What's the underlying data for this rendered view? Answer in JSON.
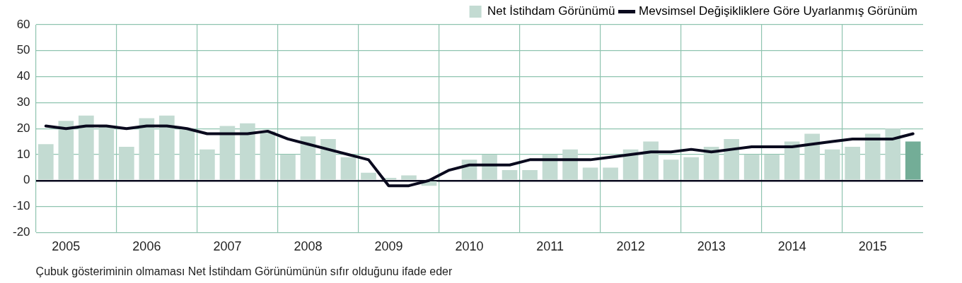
{
  "chart_data": {
    "type": "bar",
    "categories": [
      null,
      "2005",
      null,
      null,
      null,
      "2006",
      null,
      null,
      null,
      "2007",
      null,
      null,
      null,
      "2008",
      null,
      null,
      null,
      "2009",
      null,
      null,
      null,
      "2010",
      null,
      null,
      null,
      "2011",
      null,
      null,
      null,
      "2012",
      null,
      null,
      null,
      "2013",
      null,
      null,
      null,
      "2014",
      null,
      null,
      null,
      "2015",
      null,
      null
    ],
    "series": [
      {
        "name": "Net İstihdam Görünümü",
        "color": "#c3dbd2",
        "colors": [
          "#c3dbd2",
          "#c3dbd2",
          "#c3dbd2",
          "#c3dbd2",
          "#c3dbd2",
          "#c3dbd2",
          "#c3dbd2",
          "#c3dbd2",
          "#c3dbd2",
          "#c3dbd2",
          "#c3dbd2",
          "#c3dbd2",
          "#c3dbd2",
          "#c3dbd2",
          "#c3dbd2",
          "#c3dbd2",
          "#c3dbd2",
          "#c3dbd2",
          "#c3dbd2",
          "#c3dbd2",
          "#c3dbd2",
          "#c3dbd2",
          "#c3dbd2",
          "#c3dbd2",
          "#c3dbd2",
          "#c3dbd2",
          "#c3dbd2",
          "#c3dbd2",
          "#c3dbd2",
          "#c3dbd2",
          "#c3dbd2",
          "#c3dbd2",
          "#c3dbd2",
          "#c3dbd2",
          "#c3dbd2",
          "#c3dbd2",
          "#c3dbd2",
          "#c3dbd2",
          "#c3dbd2",
          "#c3dbd2",
          "#c3dbd2",
          "#c3dbd2",
          "#c3dbd2",
          "#73ad97"
        ],
        "values": [
          14,
          23,
          25,
          21,
          13,
          24,
          25,
          20,
          12,
          21,
          22,
          19,
          10,
          17,
          16,
          9,
          3,
          1,
          2,
          -2,
          0,
          8,
          10,
          4,
          4,
          10,
          12,
          5,
          5,
          12,
          15,
          8,
          9,
          13,
          16,
          10,
          10,
          15,
          18,
          12,
          13,
          18,
          20,
          15
        ]
      },
      {
        "name": "Mevsimsel Değişikliklere Göre Uyarlanmış Görünüm",
        "type": "line",
        "color": "#0a0a1e",
        "values": [
          21,
          20,
          21,
          21,
          20,
          21,
          21,
          20,
          18,
          18,
          18,
          19,
          16,
          14,
          12,
          10,
          8,
          -2,
          -2,
          0,
          4,
          6,
          6,
          6,
          8,
          8,
          8,
          8,
          9,
          10,
          11,
          11,
          12,
          11,
          12,
          13,
          13,
          13,
          14,
          15,
          16,
          16,
          16,
          18
        ]
      }
    ],
    "ylim": [
      -20,
      60
    ],
    "yticks": [
      -20,
      -10,
      0,
      10,
      20,
      30,
      40,
      50,
      60
    ],
    "grid": true,
    "legend": "top right",
    "marker": "none",
    "line_style": "solid",
    "annotations": [
      "Çubuk gösteriminin olmaması Net İstihdam Görünümünün sıfır olduğunu ifade eder"
    ]
  }
}
